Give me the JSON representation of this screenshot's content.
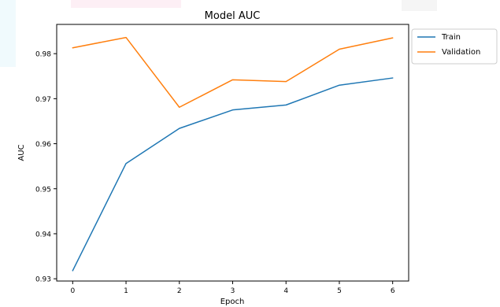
{
  "chart_data": {
    "type": "line",
    "title": "Model AUC",
    "xlabel": "Epoch",
    "ylabel": "AUC",
    "x": [
      0,
      1,
      2,
      3,
      4,
      5,
      6
    ],
    "xlim": [
      -0.3,
      6.3
    ],
    "ylim": [
      0.9295,
      0.9865
    ],
    "xticks": [
      "0",
      "1",
      "2",
      "3",
      "4",
      "5",
      "6"
    ],
    "yticks": [
      "0.93",
      "0.94",
      "0.95",
      "0.96",
      "0.97",
      "0.98"
    ],
    "grid": false,
    "legend_position": "outside-right",
    "series": [
      {
        "name": "Train",
        "color": "#1f77b4",
        "values": [
          0.9318,
          0.9556,
          0.9634,
          0.9675,
          0.9686,
          0.973,
          0.9746
        ]
      },
      {
        "name": "Validation",
        "color": "#ff7f0e",
        "values": [
          0.9813,
          0.9836,
          0.9681,
          0.9742,
          0.9738,
          0.981,
          0.9835
        ]
      }
    ]
  }
}
